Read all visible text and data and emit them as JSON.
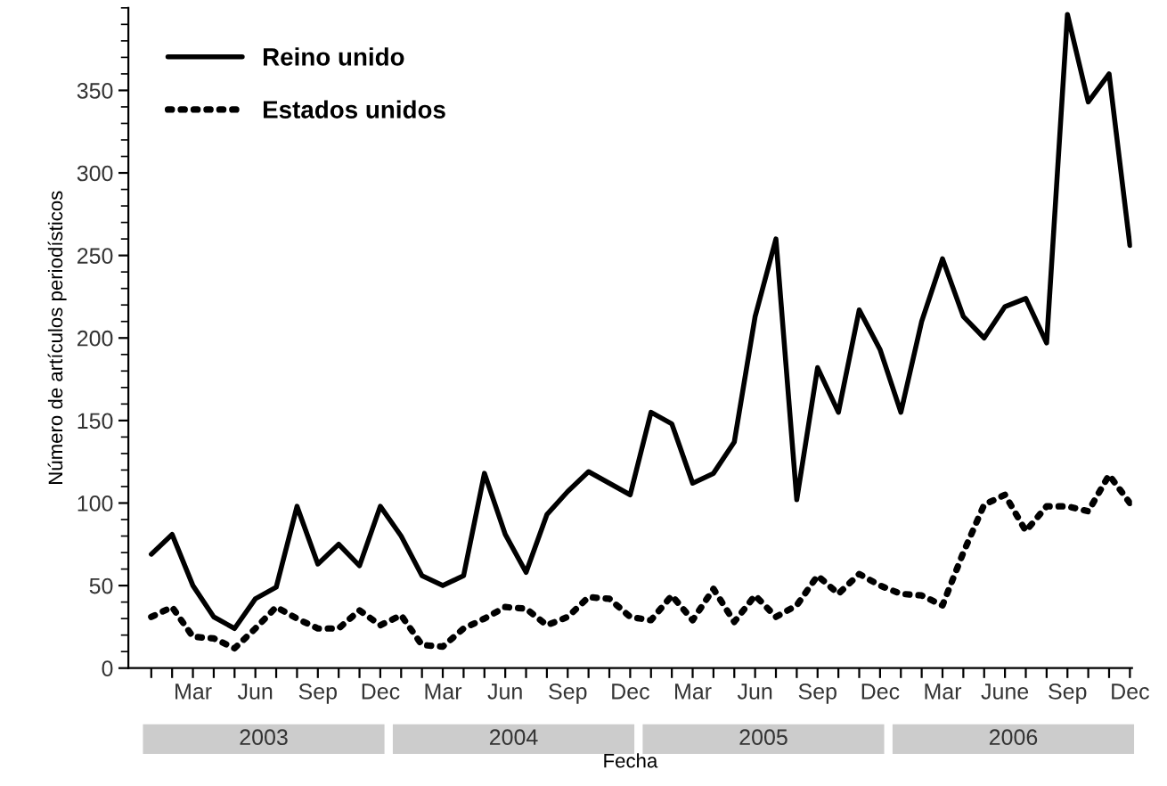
{
  "chart_data": {
    "type": "line",
    "xlabel": "Fecha",
    "ylabel": "Número de artículos periodísticos",
    "categories": [
      null,
      null,
      "Mar",
      null,
      null,
      "Jun",
      null,
      null,
      "Sep",
      null,
      null,
      "Dec",
      null,
      null,
      "Mar",
      null,
      null,
      "Jun",
      null,
      null,
      "Sep",
      null,
      null,
      "Dec",
      null,
      null,
      "Mar",
      null,
      null,
      "Jun",
      null,
      null,
      "Sep",
      null,
      null,
      "Dec",
      null,
      null,
      "Mar",
      null,
      null,
      "June",
      null,
      null,
      "Sep",
      null,
      null,
      "Dec"
    ],
    "series": [
      {
        "name": "Reino unido",
        "color": "#000000",
        "line_style": "solid",
        "values": [
          69,
          81,
          50,
          31,
          24,
          42,
          49,
          98,
          63,
          75,
          62,
          98,
          80,
          56,
          50,
          56,
          118,
          81,
          58,
          93,
          107,
          119,
          112,
          105,
          155,
          148,
          112,
          118,
          137,
          213,
          260,
          102,
          182,
          155,
          217,
          193,
          155,
          210,
          248,
          213,
          200,
          219,
          224,
          197,
          396,
          343,
          360,
          256
        ]
      },
      {
        "name": "Estados unidos",
        "color": "#000000",
        "line_style": "dotted",
        "values": [
          31,
          37,
          19,
          18,
          12,
          24,
          37,
          30,
          24,
          24,
          35,
          26,
          32,
          14,
          13,
          24,
          30,
          37,
          36,
          26,
          31,
          43,
          42,
          31,
          29,
          44,
          29,
          48,
          28,
          44,
          31,
          38,
          56,
          45,
          57,
          50,
          45,
          44,
          38,
          70,
          99,
          105,
          83,
          98,
          98,
          95,
          117,
          100
        ]
      }
    ],
    "annotations": [
      "2003",
      "2004",
      "2005",
      "2006"
    ],
    "ylim": [
      0,
      400
    ],
    "yticks": [
      0,
      50,
      100,
      150,
      200,
      250,
      300,
      350
    ],
    "grid": false,
    "legend": "top left"
  }
}
